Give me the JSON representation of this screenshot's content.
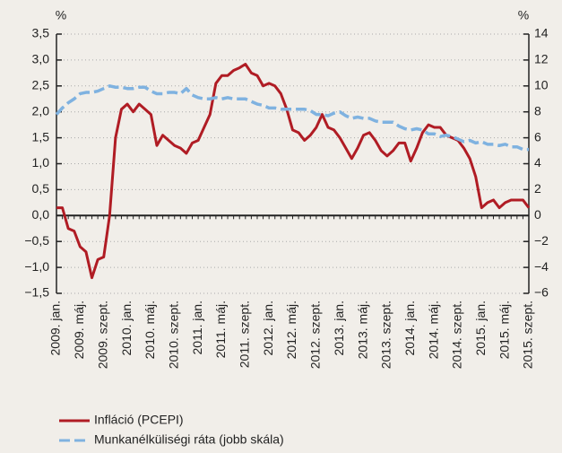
{
  "chart_data": {
    "type": "line",
    "y_unit": "%",
    "y2_unit": "%",
    "categories": [
      "2009. jan.",
      null,
      null,
      null,
      "2009. máj.",
      null,
      null,
      null,
      "2009. szept.",
      null,
      null,
      null,
      "2010. jan.",
      null,
      null,
      null,
      "2010. máj.",
      null,
      null,
      null,
      "2010. szept.",
      null,
      null,
      null,
      "2011. jan.",
      null,
      null,
      null,
      "2011. máj.",
      null,
      null,
      null,
      "2011. szept.",
      null,
      null,
      null,
      "2012. jan.",
      null,
      null,
      null,
      "2012. máj.",
      null,
      null,
      null,
      "2012. szept.",
      null,
      null,
      null,
      "2013. jan.",
      null,
      null,
      null,
      "2013. máj.",
      null,
      null,
      null,
      "2013. szept.",
      null,
      null,
      null,
      "2014. jan.",
      null,
      null,
      null,
      "2014. máj.",
      null,
      null,
      null,
      "2014. szept.",
      null,
      null,
      null,
      "2015. jan.",
      null,
      null,
      null,
      "2015. máj.",
      null,
      null,
      null,
      "2015. szept."
    ],
    "series": [
      {
        "name": "Infláció (PCEPI)",
        "color": "#b01c24",
        "dashed": false,
        "values": [
          0.15,
          0.15,
          -0.25,
          -0.3,
          -0.6,
          -0.7,
          -1.2,
          -0.85,
          -0.8,
          0.0,
          1.5,
          2.05,
          2.15,
          2.0,
          2.15,
          2.05,
          1.95,
          1.35,
          1.55,
          1.45,
          1.35,
          1.3,
          1.2,
          1.4,
          1.45,
          1.7,
          1.95,
          2.55,
          2.7,
          2.7,
          2.8,
          2.85,
          2.92,
          2.75,
          2.7,
          2.5,
          2.55,
          2.5,
          2.35,
          2.05,
          1.65,
          1.6,
          1.45,
          1.55,
          1.7,
          1.95,
          1.7,
          1.65,
          1.5,
          1.3,
          1.1,
          1.3,
          1.55,
          1.6,
          1.45,
          1.25,
          1.15,
          1.25,
          1.4,
          1.4,
          1.05,
          1.3,
          1.6,
          1.75,
          1.7,
          1.7,
          1.55,
          1.5,
          1.45,
          1.3,
          1.1,
          0.75,
          0.15,
          0.25,
          0.3,
          0.15,
          0.25,
          0.3,
          0.3,
          0.3,
          0.15
        ]
      },
      {
        "name": "Munkanélküliségi ráta (jobb skála)",
        "color": "#7fb2e0",
        "dashed": true,
        "axis": "y2",
        "values": [
          7.8,
          8.3,
          8.7,
          9.0,
          9.4,
          9.5,
          9.5,
          9.6,
          9.8,
          10.0,
          9.9,
          9.9,
          9.8,
          9.8,
          9.9,
          9.9,
          9.6,
          9.4,
          9.4,
          9.5,
          9.5,
          9.4,
          9.8,
          9.3,
          9.1,
          9.0,
          9.0,
          9.1,
          9.0,
          9.1,
          9.0,
          9.0,
          9.0,
          8.8,
          8.6,
          8.5,
          8.3,
          8.3,
          8.2,
          8.2,
          8.2,
          8.2,
          8.2,
          8.1,
          7.8,
          7.8,
          7.7,
          7.9,
          8.0,
          7.7,
          7.5,
          7.6,
          7.5,
          7.5,
          7.3,
          7.2,
          7.2,
          7.2,
          6.9,
          6.7,
          6.6,
          6.7,
          6.6,
          6.3,
          6.3,
          6.1,
          6.2,
          6.1,
          5.9,
          5.7,
          5.8,
          5.6,
          5.7,
          5.5,
          5.5,
          5.4,
          5.5,
          5.3,
          5.3,
          5.1,
          5.1
        ]
      }
    ],
    "ylim": [
      -1.5,
      3.5
    ],
    "yticks": [
      {
        "value": -1.5,
        "label": "−1,5"
      },
      {
        "value": -1.0,
        "label": "−1,0"
      },
      {
        "value": -0.5,
        "label": "−0,5"
      },
      {
        "value": 0,
        "label": "0,0"
      },
      {
        "value": 0.5,
        "label": "0,5"
      },
      {
        "value": 1.0,
        "label": "1,0"
      },
      {
        "value": 1.5,
        "label": "1,5"
      },
      {
        "value": 2.0,
        "label": "2,0"
      },
      {
        "value": 2.5,
        "label": "2,5"
      },
      {
        "value": 3.0,
        "label": "3,0"
      },
      {
        "value": 3.5,
        "label": "3,5"
      }
    ],
    "y2lim": [
      -6,
      14
    ],
    "y2ticks": [
      {
        "value": -6,
        "label": "−6"
      },
      {
        "value": -4,
        "label": "−4"
      },
      {
        "value": -2,
        "label": "−2"
      },
      0,
      2,
      4,
      6,
      8,
      10,
      12,
      14
    ],
    "grid": true
  }
}
